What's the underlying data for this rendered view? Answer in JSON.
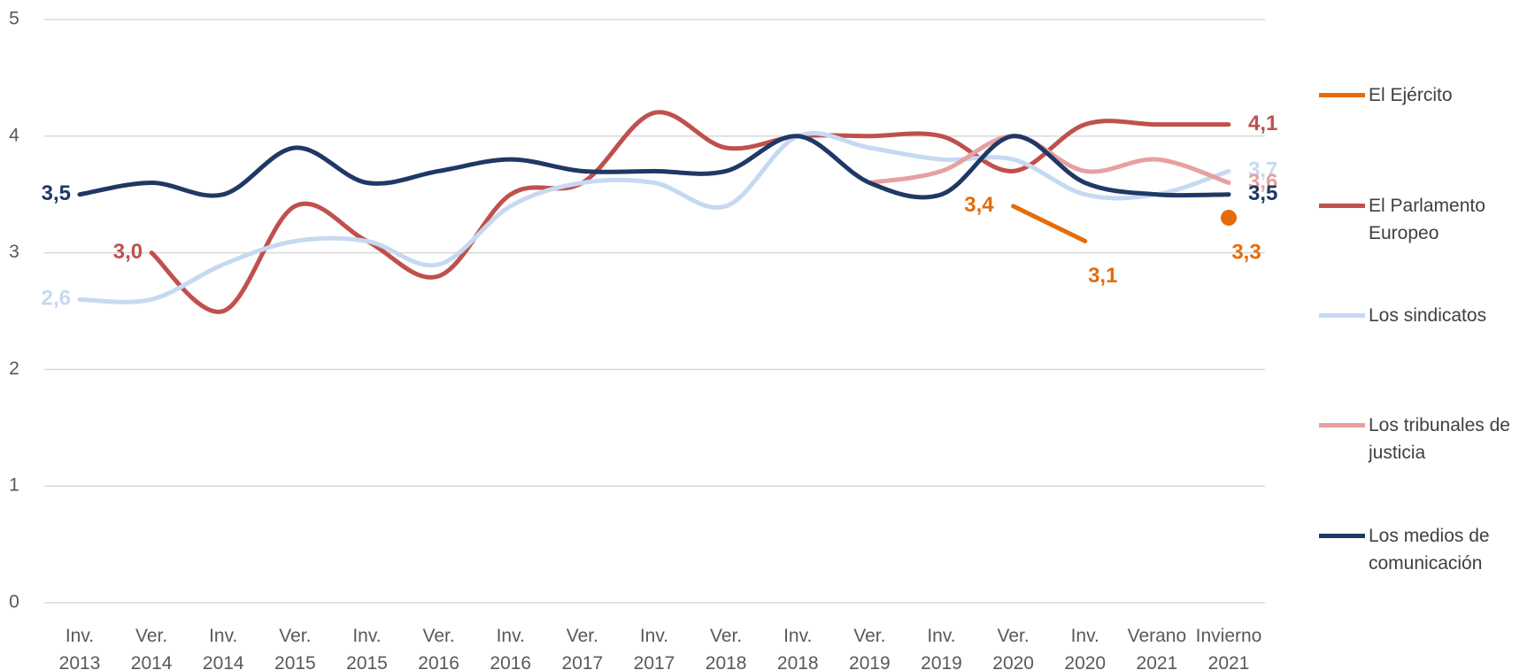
{
  "chart_data": {
    "type": "line",
    "categories": [
      "Inv. 2013",
      "Ver. 2014",
      "Inv. 2014",
      "Ver. 2015",
      "Inv. 2015",
      "Ver. 2016",
      "Inv. 2016",
      "Ver. 2017",
      "Inv. 2017",
      "Ver. 2018",
      "Inv. 2018",
      "Ver. 2019",
      "Inv. 2019",
      "Ver. 2020",
      "Inv. 2020",
      "Verano 2021",
      "Invierno 2021"
    ],
    "ylim": [
      0,
      5
    ],
    "yticks": [
      0,
      1,
      2,
      3,
      4,
      5
    ],
    "grid": true,
    "legend": "right",
    "series": [
      {
        "name": "El Ejército",
        "color": "#e46c0a",
        "values": [
          null,
          null,
          null,
          null,
          null,
          null,
          null,
          null,
          null,
          null,
          null,
          null,
          null,
          3.4,
          3.1,
          null,
          3.3
        ],
        "value_labels": [
          null,
          null,
          null,
          null,
          null,
          null,
          null,
          null,
          null,
          null,
          null,
          null,
          null,
          "3,4",
          "3,1",
          null,
          "3,3"
        ]
      },
      {
        "name": "El Parlamento Europeo",
        "color": "#c0504d",
        "values": [
          null,
          3.0,
          2.5,
          3.4,
          3.1,
          2.8,
          3.5,
          3.6,
          4.2,
          3.9,
          4.0,
          4.0,
          4.0,
          3.7,
          4.1,
          4.1,
          4.1
        ],
        "value_labels": [
          null,
          "3,0",
          null,
          null,
          null,
          null,
          null,
          null,
          null,
          null,
          null,
          null,
          null,
          null,
          null,
          null,
          "4,1"
        ]
      },
      {
        "name": "Los sindicatos",
        "color": "#c6d9f1",
        "values": [
          2.6,
          2.6,
          2.9,
          3.1,
          3.1,
          2.9,
          3.4,
          3.6,
          3.6,
          3.4,
          4.0,
          3.9,
          3.8,
          3.8,
          3.5,
          3.5,
          3.7
        ],
        "value_labels": [
          "2,6",
          null,
          null,
          null,
          null,
          null,
          null,
          null,
          null,
          null,
          null,
          null,
          null,
          null,
          null,
          null,
          "3,7"
        ]
      },
      {
        "name": "Los tribunales de justicia",
        "color": "#e6a0a0",
        "values": [
          null,
          null,
          null,
          null,
          null,
          null,
          null,
          null,
          null,
          null,
          null,
          3.6,
          3.7,
          4.0,
          3.7,
          3.8,
          3.6
        ],
        "value_labels": [
          null,
          null,
          null,
          null,
          null,
          null,
          null,
          null,
          null,
          null,
          null,
          null,
          null,
          null,
          null,
          null,
          "3,6"
        ]
      },
      {
        "name": "Los medios de comunicación",
        "color": "#1f3864",
        "values": [
          3.5,
          3.6,
          3.5,
          3.9,
          3.6,
          3.7,
          3.8,
          3.7,
          3.7,
          3.7,
          4.0,
          3.6,
          3.5,
          4.0,
          3.6,
          3.5,
          3.5
        ],
        "value_labels": [
          "3,5",
          null,
          null,
          null,
          null,
          null,
          null,
          null,
          null,
          null,
          null,
          null,
          null,
          null,
          null,
          null,
          "3,5"
        ]
      }
    ]
  }
}
